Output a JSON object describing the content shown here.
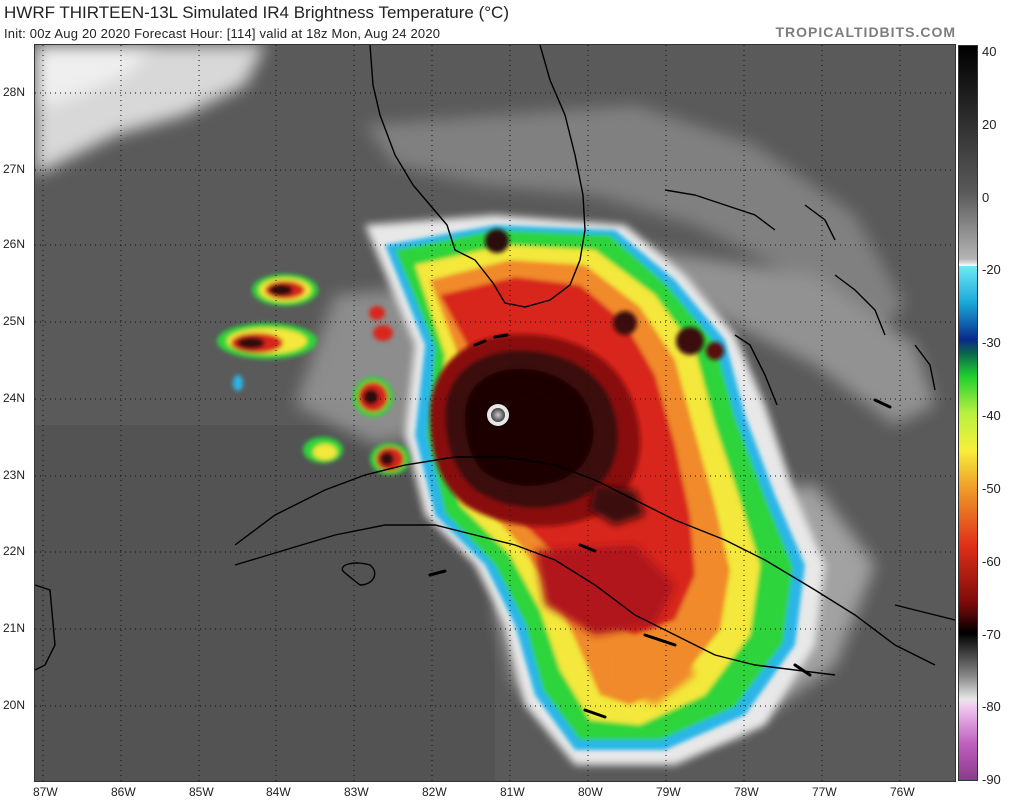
{
  "header": {
    "title": "HWRF THIRTEEN-13L Simulated IR4 Brightness Temperature (°C)",
    "subtitle": "Init: 00z Aug 20 2020   Forecast Hour: [114]   valid at 18z Mon, Aug 24 2020",
    "site": "TROPICALTIDBITS.COM"
  },
  "axes": {
    "lat_labels": [
      "28N",
      "27N",
      "26N",
      "25N",
      "24N",
      "23N",
      "22N",
      "21N",
      "20N"
    ],
    "lon_labels": [
      "87W",
      "86W",
      "85W",
      "84W",
      "83W",
      "82W",
      "81W",
      "80W",
      "79W",
      "78W",
      "77W",
      "76W"
    ]
  },
  "colorbar": {
    "labels": [
      "40",
      "20",
      "0",
      "-20",
      "-30",
      "-40",
      "-50",
      "-60",
      "-70",
      "-80",
      "-90"
    ],
    "unit": "°C"
  },
  "colors": {
    "land_bg": "#5a5a5a",
    "cloud_white": "#e6e6e6",
    "cold_green": "#2fd43a",
    "cold_yellow": "#f3e83a",
    "cold_orange": "#f08a2a",
    "cold_red": "#d8281c",
    "core_dark": "#2a0c0c",
    "cyan_edge": "#2ab6e8",
    "blue_edge": "#1b3a9c"
  }
}
